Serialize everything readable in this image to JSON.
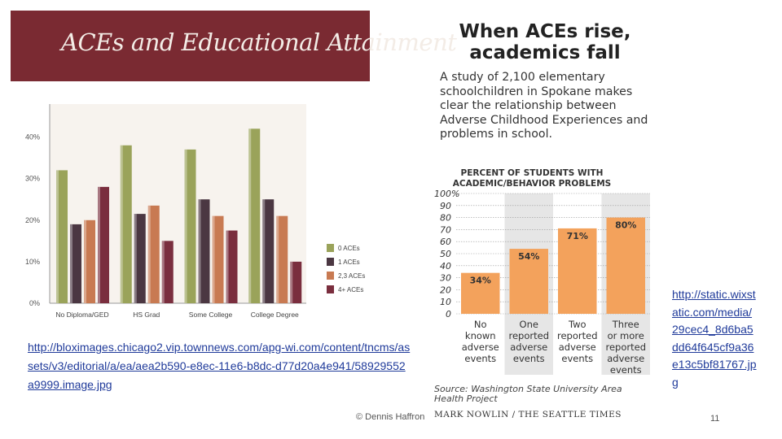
{
  "banner": {
    "title": "ACEs and Educational Attainment"
  },
  "right_heading": "When ACEs rise, academics fall",
  "right_intro": "A study of 2,100 elementary schoolchildren in Spokane makes clear the relationship between Adverse Childhood Experiences and problems in school.",
  "links": {
    "left": "http://bloximages.chicago2.vip.townnews.com/apg-wi.com/content/tncms/assets/v3/editorial/a/ea/aea2b590-e8ec-11e6-b8dc-d77d20a4e941/58929552a9999.image.jpg",
    "right": "http://static.wixstatic.com/media/29cec4_8d6ba5dd64f645cf9a36e13c5bf81767.jpg"
  },
  "footer": {
    "credit": "© Dennis Haffron",
    "page_number": "11"
  },
  "colors": {
    "banner": "#7a2a32",
    "olive": "#9aa35a",
    "plum": "#4b3742",
    "orange": "#c87a52",
    "maroon": "#7a2e3e",
    "bar_orange": "#f3a25c",
    "shade": "#e6e6e6"
  },
  "chart_data": [
    {
      "type": "bar",
      "categories": [
        "No Diploma/GED",
        "HS Grad",
        "Some College",
        "College Degree"
      ],
      "series": [
        {
          "name": "0 ACEs",
          "values": [
            32,
            38,
            37,
            42
          ]
        },
        {
          "name": "1 ACEs",
          "values": [
            19,
            21.5,
            25,
            25
          ]
        },
        {
          "name": "2,3 ACEs",
          "values": [
            20,
            23.5,
            21,
            21
          ]
        },
        {
          "name": "4+ ACEs",
          "values": [
            28,
            15,
            17.5,
            10
          ]
        }
      ],
      "yticks": [
        "0%",
        "10%",
        "20%",
        "30%",
        "40%"
      ],
      "ylim": [
        0,
        45
      ],
      "legend": "right",
      "grid": false
    },
    {
      "type": "bar",
      "title": "PERCENT OF STUDENTS WITH ACADEMIC/BEHAVIOR PROBLEMS",
      "categories": [
        "No known adverse events",
        "One reported adverse events",
        "Two reported adverse events",
        "Three or more reported adverse events"
      ],
      "category_lines": [
        [
          "No",
          "known",
          "adverse",
          "events"
        ],
        [
          "One",
          "reported",
          "adverse",
          "events"
        ],
        [
          "Two",
          "reported",
          "adverse",
          "events"
        ],
        [
          "Three",
          "or more",
          "reported",
          "adverse",
          "events"
        ]
      ],
      "values": [
        34,
        54,
        71,
        80
      ],
      "data_labels": [
        "34%",
        "54%",
        "71%",
        "80%"
      ],
      "yticks": [
        "0",
        "10",
        "20",
        "30",
        "40",
        "50",
        "60",
        "70",
        "80",
        "90",
        "100%"
      ],
      "ylim": [
        0,
        100
      ],
      "grid": true,
      "source": "Source: Washington State University Area Health Project",
      "byline": "MARK NOWLIN / THE SEATTLE TIMES"
    }
  ]
}
